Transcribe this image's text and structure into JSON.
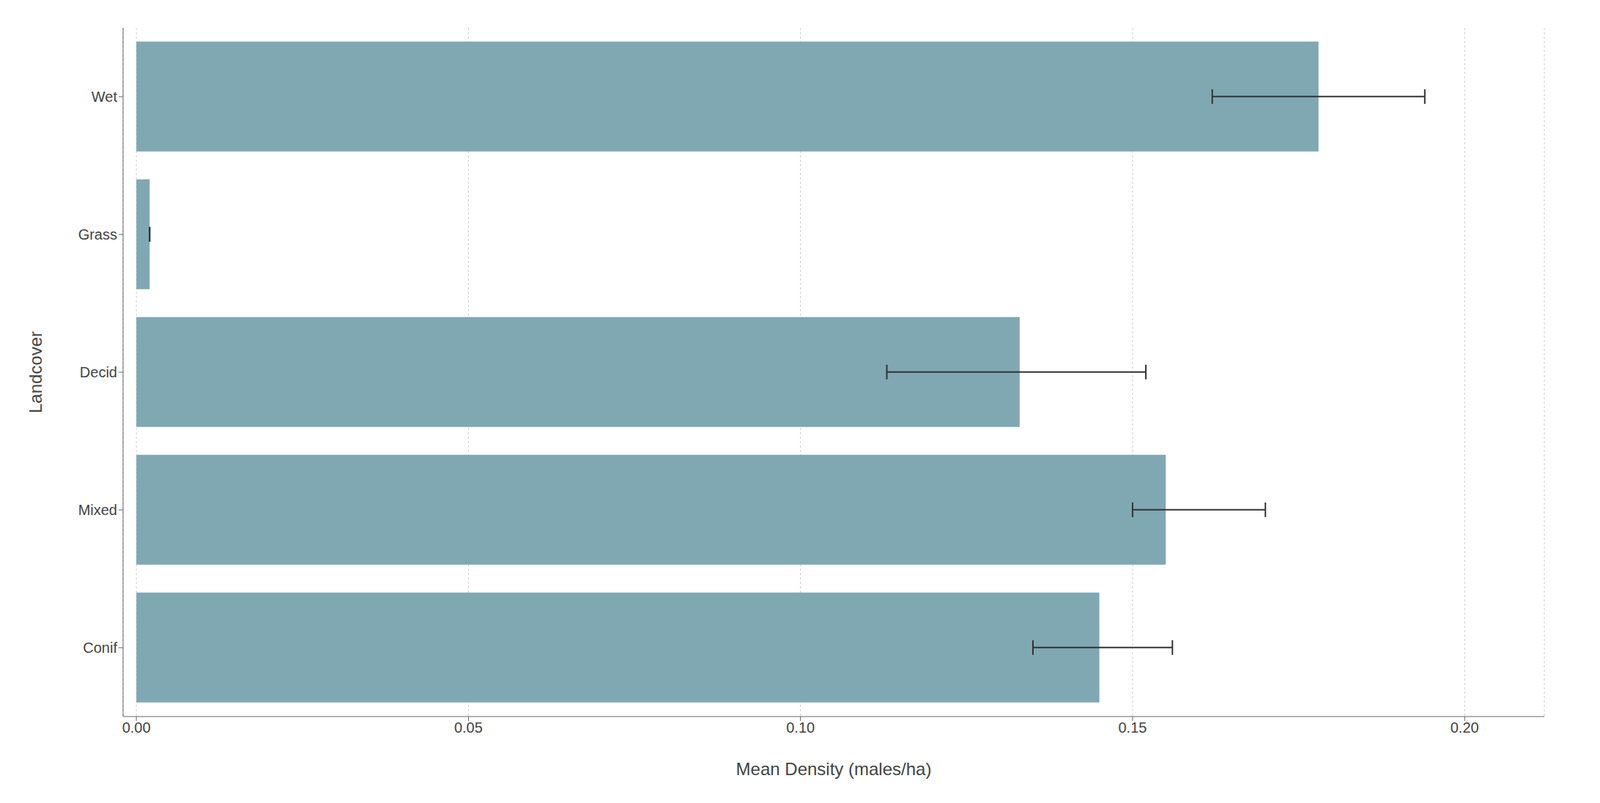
{
  "chart_data": {
    "type": "bar",
    "orientation": "horizontal",
    "categories": [
      "Conif",
      "Mixed",
      "Decid",
      "Grass",
      "Wet"
    ],
    "values": [
      0.145,
      0.155,
      0.133,
      0.002,
      0.178
    ],
    "error_low": [
      0.135,
      0.15,
      0.113,
      0.002,
      0.162
    ],
    "error_high": [
      0.156,
      0.17,
      0.152,
      0.002,
      0.194
    ],
    "color": "#7fa8b3",
    "xlabel": "Mean Density (males/ha)",
    "ylabel": "Landcover",
    "xlim": [
      -0.002,
      0.212
    ],
    "xticks": [
      {
        "value": 0.0,
        "label": "0.00"
      },
      {
        "value": 0.05,
        "label": "0.05"
      },
      {
        "value": 0.1,
        "label": "0.10"
      },
      {
        "value": 0.15,
        "label": "0.15"
      },
      {
        "value": 0.2,
        "label": "0.20"
      }
    ],
    "grid": true
  }
}
